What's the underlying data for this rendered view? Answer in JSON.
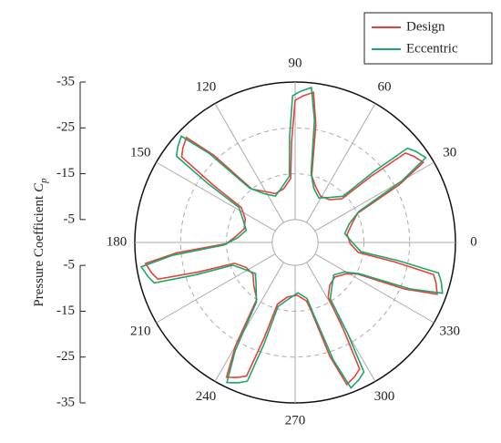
{
  "chart_data": {
    "type": "polar",
    "ylabel": "Pressure Coefficient",
    "ylabel_symbol": "C",
    "ylabel_subscript": "p",
    "rlim": [
      0,
      -35
    ],
    "rticks": [
      -35,
      -25,
      -15,
      -5
    ],
    "thetaticks": [
      0,
      30,
      60,
      90,
      120,
      150,
      180,
      210,
      240,
      270,
      300,
      330
    ],
    "legend": "upper right",
    "series": [
      {
        "name": "Design",
        "color": "#e8403a",
        "theta": [
          9,
          18,
          25,
          29,
          32,
          36,
          39,
          41,
          43,
          51,
          61,
          70,
          76,
          80,
          83,
          87,
          90,
          92,
          94,
          102,
          112,
          121,
          129,
          133,
          136,
          140,
          143,
          145,
          147,
          155,
          165,
          174,
          181,
          185,
          188,
          192,
          195,
          197,
          199,
          207,
          217,
          226,
          236,
          240,
          243,
          247,
          250,
          252,
          254,
          262,
          272,
          281,
          283,
          287,
          290,
          294,
          297,
          299,
          301,
          309,
          319,
          328,
          333,
          337,
          340,
          344,
          347,
          349,
          351,
          359
        ],
        "values": [
          -11.5,
          -13,
          -15,
          -26,
          -33,
          -32,
          -31,
          -22,
          -14,
          -12,
          -11.5,
          -13,
          -15,
          -26,
          -33,
          -32,
          -31,
          -22,
          -14,
          -12,
          -11.5,
          -13,
          -15,
          -26,
          -33,
          -32,
          -31,
          -22,
          -14,
          -12,
          -11.5,
          -13,
          -15,
          -26,
          -33,
          -32,
          -31,
          -22,
          -14,
          -12,
          -11.5,
          -13,
          -15,
          -26,
          -33,
          -32,
          -31,
          -22,
          -14,
          -12,
          -11.5,
          -13,
          -15,
          -26,
          -33,
          -32,
          -31,
          -22,
          -14,
          -12,
          -11.5,
          -13,
          -15,
          -26,
          -33,
          -32,
          -31,
          -22,
          -14,
          -12
        ]
      },
      {
        "name": "Eccentric",
        "color": "#1aa86a",
        "theta": [
          10,
          19,
          26,
          30,
          33,
          37,
          40,
          42,
          44,
          52,
          62,
          71,
          77,
          81,
          84,
          88,
          91,
          93,
          95,
          103,
          113,
          122,
          130,
          134,
          137,
          141,
          144,
          146,
          148,
          156,
          166,
          175,
          182,
          186,
          189,
          193,
          196,
          198,
          200,
          208,
          218,
          227,
          237,
          241,
          244,
          248,
          251,
          253,
          255,
          263,
          273,
          282,
          284,
          288,
          291,
          295,
          298,
          300,
          302,
          310,
          320,
          329,
          334,
          338,
          341,
          345,
          348,
          350,
          352,
          360
        ],
        "values": [
          -11,
          -12.5,
          -15.5,
          -27,
          -34,
          -33,
          -32,
          -23,
          -14.5,
          -12.5,
          -11,
          -12.5,
          -15.5,
          -27,
          -34,
          -33,
          -32,
          -23,
          -14.5,
          -12.5,
          -11,
          -12.5,
          -15.5,
          -27,
          -34,
          -33,
          -32,
          -23,
          -14.5,
          -12.5,
          -11,
          -12.5,
          -15.5,
          -27,
          -34,
          -33,
          -32,
          -23,
          -14.5,
          -12.5,
          -11,
          -12.5,
          -15.5,
          -27,
          -34,
          -33,
          -32,
          -23,
          -14.5,
          -12.5,
          -11,
          -12.5,
          -15.5,
          -27,
          -34,
          -33,
          -32,
          -23,
          -14.5,
          -12.5,
          -11,
          -12.5,
          -15.5,
          -27,
          -34,
          -33,
          -32,
          -23,
          -14.5,
          -12.5
        ]
      }
    ]
  }
}
